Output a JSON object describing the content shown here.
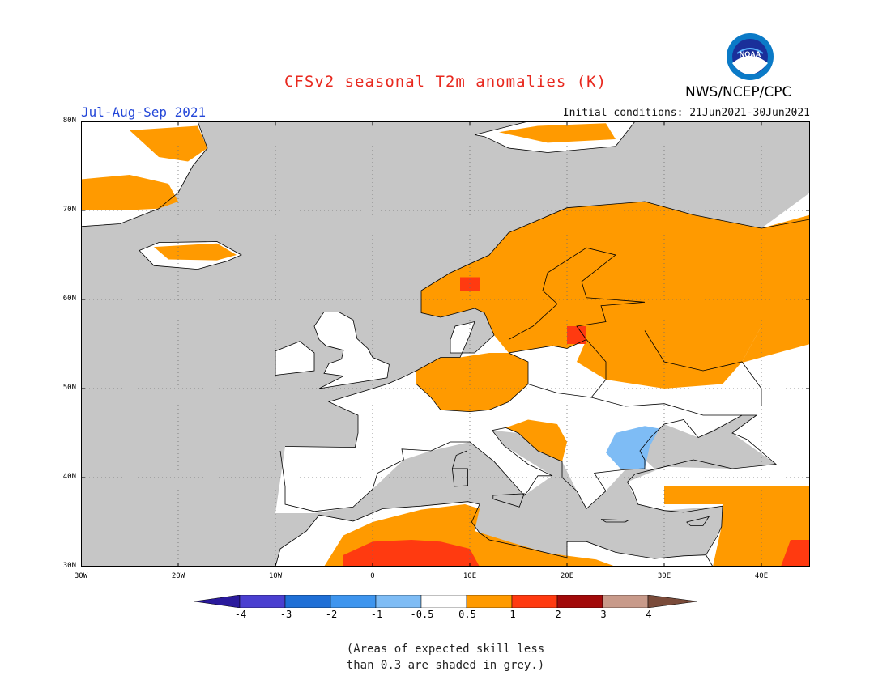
{
  "title": "CFSv2 seasonal T2m anomalies (K)",
  "season": "Jul-Aug-Sep 2021",
  "initial_conditions": "Initial conditions: 21Jun2021-30Jun2021",
  "agency": "NWS/NCEP/CPC",
  "logo_text": "NOAA",
  "y_axis_labels": [
    "80N",
    "70N",
    "60N",
    "50N",
    "40N",
    "30N"
  ],
  "x_axis_labels": [
    "30W",
    "20W",
    "10W",
    "0",
    "10E",
    "20E",
    "30E",
    "40E"
  ],
  "colorbar": {
    "labels": [
      "-4",
      "-3",
      "-2",
      "-1",
      "-0.5",
      "0.5",
      "1",
      "2",
      "3",
      "4"
    ],
    "colors": [
      "#2a1a9c",
      "#4a3fd0",
      "#1f6fd6",
      "#3e95ee",
      "#7ebcf5",
      "#ffffff",
      "#ff9a00",
      "#ff3a10",
      "#a20a0a",
      "#c89a8a",
      "#7a4b3a"
    ]
  },
  "colors": {
    "ocean_grey": "#c6c6c6",
    "land_white": "#ffffff",
    "warm_orange": "#ff9a00",
    "warm_red": "#ff3a10",
    "cool_blue": "#7ebcf5",
    "cool_blue_deep": "#6aa8f0"
  },
  "map_extent": {
    "lon": [
      -30,
      45
    ],
    "lat": [
      30,
      80
    ]
  },
  "note_lines": [
    "(Areas of expected skill less",
    "than 0.3 are shaded in grey.)"
  ]
}
